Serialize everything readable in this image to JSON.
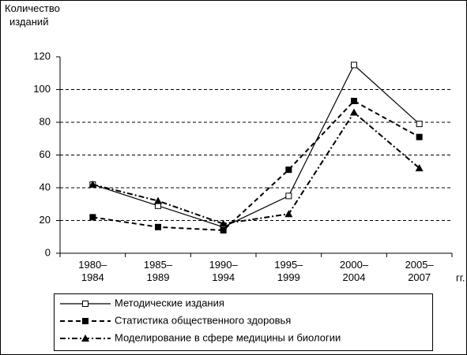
{
  "chart_data": {
    "type": "line",
    "y_label": "Количество изданий",
    "x_unit": "гг.",
    "categories": [
      "1980–1984",
      "1985–1989",
      "1990–1994",
      "1995–1999",
      "2000–2004",
      "2005–2007"
    ],
    "series": [
      {
        "name": "Методические издания",
        "color": "#000000",
        "marker": "open-square",
        "dash": "solid",
        "values": [
          42,
          29,
          16,
          35,
          115,
          79
        ]
      },
      {
        "name": "Статистика общественного здоровья",
        "color": "#000000",
        "marker": "square",
        "dash": "dashed",
        "values": [
          22,
          16,
          14,
          51,
          93,
          71
        ]
      },
      {
        "name": "Моделирование в сфере медицины и биологии",
        "color": "#000000",
        "marker": "triangle",
        "dash": "dashdot",
        "values": [
          42,
          32,
          18,
          24,
          86,
          52
        ]
      }
    ],
    "ylim": [
      0,
      120
    ],
    "yticks": [
      0,
      20,
      40,
      60,
      80,
      100,
      120
    ],
    "grid": true
  }
}
